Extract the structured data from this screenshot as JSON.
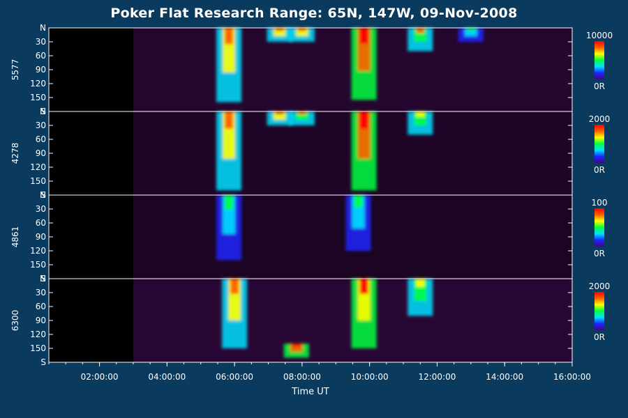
{
  "chart_data": {
    "type": "heatmap",
    "title": "Poker Flat Research Range: 65N, 147W, 09-Nov-2008",
    "xlabel": "Time UT",
    "x_range": [
      "00:30:00",
      "16:00:00"
    ],
    "x_ticks": [
      "02:00:00",
      "04:00:00",
      "06:00:00",
      "08:00:00",
      "10:00:00",
      "12:00:00",
      "14:00:00",
      "16:00:00"
    ],
    "y_ticks": [
      "N",
      "30",
      "60",
      "90",
      "120",
      "150",
      "S"
    ],
    "y_range": [
      0,
      180
    ],
    "colorbar_colors": [
      "#4b0082",
      "#1e24ff",
      "#00e0ff",
      "#00ff40",
      "#ffff00",
      "#ff6000",
      "#ff0000"
    ],
    "panels": [
      {
        "wavelength": "5577",
        "colorbar_max": "10000",
        "colorbar_min": "0R",
        "background_level": 0.12,
        "events": [
          {
            "t": "05:50",
            "el_start": 0,
            "el_end": 160,
            "intensity": 0.9
          },
          {
            "t": "07:20",
            "el_start": 0,
            "el_end": 30,
            "intensity": 0.85
          },
          {
            "t": "08:00",
            "el_start": 0,
            "el_end": 30,
            "intensity": 0.8
          },
          {
            "t": "09:50",
            "el_start": 0,
            "el_end": 155,
            "intensity": 1.0
          },
          {
            "t": "11:30",
            "el_start": 0,
            "el_end": 50,
            "intensity": 0.75
          },
          {
            "t": "13:00",
            "el_start": 0,
            "el_end": 30,
            "intensity": 0.55
          }
        ]
      },
      {
        "wavelength": "4278",
        "colorbar_max": "2000",
        "colorbar_min": "0R",
        "background_level": 0.06,
        "events": [
          {
            "t": "05:50",
            "el_start": 0,
            "el_end": 170,
            "intensity": 0.85
          },
          {
            "t": "07:20",
            "el_start": 0,
            "el_end": 30,
            "intensity": 0.8
          },
          {
            "t": "08:00",
            "el_start": 0,
            "el_end": 30,
            "intensity": 0.75
          },
          {
            "t": "09:50",
            "el_start": 0,
            "el_end": 170,
            "intensity": 1.0
          },
          {
            "t": "11:30",
            "el_start": 0,
            "el_end": 50,
            "intensity": 0.7
          }
        ]
      },
      {
        "wavelength": "4861",
        "colorbar_max": "100",
        "colorbar_min": "0R",
        "background_level": 0.04,
        "events": [
          {
            "t": "05:50",
            "el_start": 0,
            "el_end": 140,
            "intensity": 0.55
          },
          {
            "t": "09:40",
            "el_start": 0,
            "el_end": 120,
            "intensity": 0.5
          }
        ]
      },
      {
        "wavelength": "6300",
        "colorbar_max": "2000",
        "colorbar_min": "0R",
        "background_level": 0.15,
        "events": [
          {
            "t": "06:00",
            "el_start": 0,
            "el_end": 150,
            "intensity": 0.8
          },
          {
            "t": "07:50",
            "el_start": 140,
            "el_end": 170,
            "intensity": 1.0
          },
          {
            "t": "09:50",
            "el_start": 0,
            "el_end": 150,
            "intensity": 0.95
          },
          {
            "t": "11:30",
            "el_start": 0,
            "el_end": 80,
            "intensity": 0.6
          }
        ]
      }
    ]
  }
}
